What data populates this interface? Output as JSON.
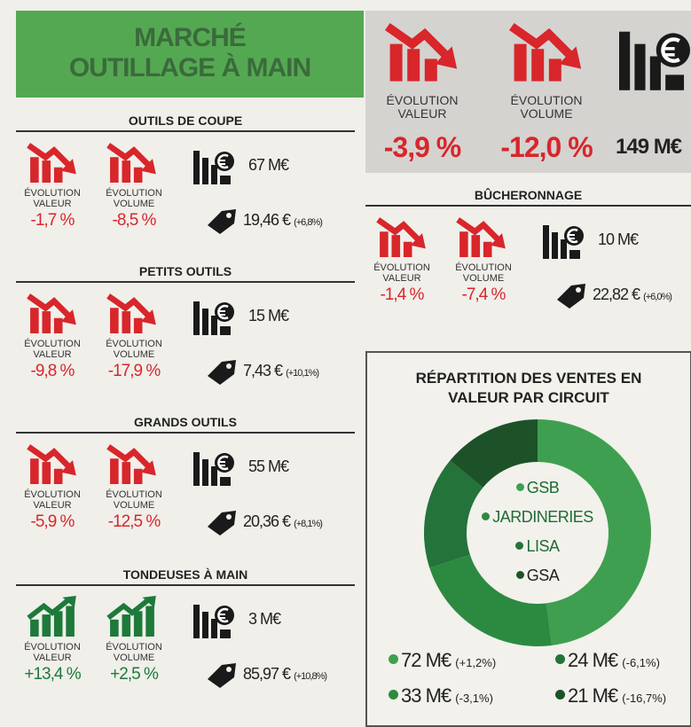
{
  "header": {
    "title_lines": [
      "MARCHÉ",
      "OUTILLAGE À MAIN"
    ]
  },
  "summary": {
    "value_label": "ÉVOLUTION VALEUR",
    "value": "-3,9 %",
    "volume_label": "ÉVOLUTION VOLUME",
    "volume": "-12,0 %",
    "market": "149 M€",
    "color": "#d8262b"
  },
  "sections": [
    {
      "title": "OUTILS DE COUPE",
      "color": "#d8262b",
      "value_label": "ÉVOLUTION VALEUR",
      "value": "-1,7 %",
      "volume_label": "ÉVOLUTION VOLUME",
      "volume": "-8,5 %",
      "market": "67 M€",
      "price": "19,46 €",
      "price_change": "(+6,8%)"
    },
    {
      "title": "PETITS OUTILS",
      "color": "#d8262b",
      "value_label": "ÉVOLUTION VALEUR",
      "value": "-9,8 %",
      "volume_label": "ÉVOLUTION VOLUME",
      "volume": "-17,9 %",
      "market": "15 M€",
      "price": "7,43 €",
      "price_change": "(+10,1%)"
    },
    {
      "title": "GRANDS OUTILS",
      "color": "#d8262b",
      "value_label": "ÉVOLUTION VALEUR",
      "value": "-5,9 %",
      "volume_label": "ÉVOLUTION VOLUME",
      "volume": "-12,5 %",
      "market": "55 M€",
      "price": "20,36 €",
      "price_change": "(+8,1%)"
    },
    {
      "title": "TONDEUSES À MAIN",
      "color": "#1d7a3a",
      "value_label": "ÉVOLUTION VALEUR",
      "value": "+13,4 %",
      "volume_label": "ÉVOLUTION VOLUME",
      "volume": "+2,5 %",
      "market": "3 M€",
      "price": "85,97 €",
      "price_change": "(+10,8%)"
    },
    {
      "title": "BÛCHERONNAGE",
      "color": "#d8262b",
      "value_label": "ÉVOLUTION VALEUR",
      "value": "-1,4 %",
      "volume_label": "ÉVOLUTION VOLUME",
      "volume": "-7,4 %",
      "market": "10 M€",
      "price": "22,82 €",
      "price_change": "(+6,0%)"
    }
  ],
  "distribution": {
    "type": "donut",
    "title": "RÉPARTITION DES VENTES EN VALEUR PAR CIRCUIT",
    "categories": [
      "GSB",
      "JARDINERIES",
      "LISA",
      "GSA"
    ],
    "colors": [
      "#3f9f50",
      "#2c8a40",
      "#23733a",
      "#1d5229"
    ],
    "values": [
      72,
      33,
      24,
      21
    ],
    "value_labels": [
      "72 M€",
      "33 M€",
      "24 M€",
      "21 M€"
    ],
    "changes": [
      "(+1,2%)",
      "(-3,1%)",
      "(-6,1%)",
      "(-16,7%)"
    ]
  }
}
